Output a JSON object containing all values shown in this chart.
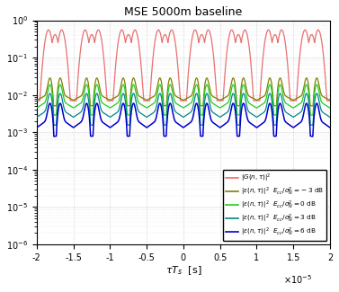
{
  "title": "MSE 5000m baseline",
  "xlabel": "$\\tau T_s$  [s]",
  "xlim": [
    -2e-05,
    2e-05
  ],
  "ylim": [
    1e-06,
    1.0
  ],
  "xticks": [
    -2,
    -1.5,
    -1,
    -0.5,
    0,
    0.5,
    1,
    1.5,
    2
  ],
  "colors": {
    "G": "#e87070",
    "cn_m3": "#808000",
    "cn_0": "#22cc22",
    "cn_3": "#008888",
    "cn_6": "#0000cc"
  },
  "legend_labels": [
    "$|G(n,\\tau)|^2$",
    "$|\\epsilon(n,\\tau)|^2$  $E_{cc}/\\sigma_N^2 = -3$ dB",
    "$|\\epsilon(n,\\tau)|^2$  $E_{cc}/\\sigma_N^2 = 0$ dB",
    "$|\\epsilon(n,\\tau)|^2$  $E_{cc}/\\sigma_N^2 = 3$ dB",
    "$|\\epsilon(n,\\tau)|^2$  $E_{cc}/\\sigma_N^2 = 6$ dB"
  ],
  "peak_positions_norm": [
    -1.75,
    -1.25,
    -0.75,
    -0.25,
    0.25,
    0.75,
    1.25,
    1.75
  ],
  "G_peak": 0.55,
  "G_floor": 0.007,
  "cn_m3_floor": 0.005,
  "cn_0_floor": 0.0028,
  "cn_3_floor": 0.0015,
  "cn_6_floor": 0.00075,
  "cn_m3_peak": 0.018,
  "cn_0_peak": 0.012,
  "cn_3_peak": 0.007,
  "cn_6_peak": 0.0038
}
